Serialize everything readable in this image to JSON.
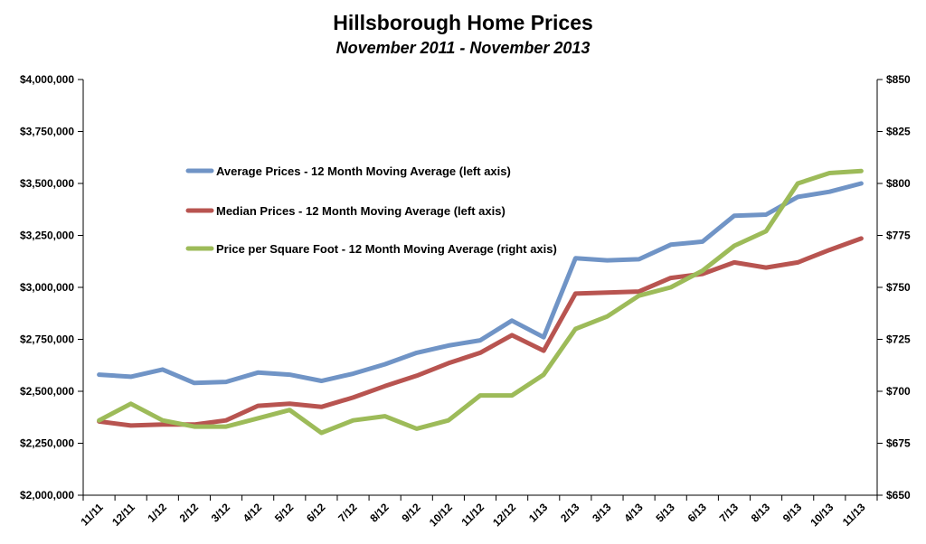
{
  "chart_data": {
    "type": "line",
    "title": "Hillsborough Home Prices",
    "subtitle": "November 2011 - November 2013",
    "categories": [
      "11/11",
      "12/11",
      "1/12",
      "2/12",
      "3/12",
      "4/12",
      "5/12",
      "6/12",
      "7/12",
      "8/12",
      "9/12",
      "10/12",
      "11/12",
      "12/12",
      "1/13",
      "2/13",
      "3/13",
      "4/13",
      "5/13",
      "6/13",
      "7/13",
      "8/13",
      "9/13",
      "10/13",
      "11/13"
    ],
    "left_axis": {
      "ylim": [
        2000000,
        4000000
      ],
      "ticks": [
        2000000,
        2250000,
        2500000,
        2750000,
        3000000,
        3250000,
        3500000,
        3750000,
        4000000
      ],
      "tick_labels": [
        "$2,000,000",
        "$2,250,000",
        "$2,500,000",
        "$2,750,000",
        "$3,000,000",
        "$3,250,000",
        "$3,500,000",
        "$3,750,000",
        "$4,000,000"
      ]
    },
    "right_axis": {
      "ylim": [
        650,
        850
      ],
      "ticks": [
        650,
        675,
        700,
        725,
        750,
        775,
        800,
        825,
        850
      ],
      "tick_labels": [
        "$650",
        "$675",
        "$700",
        "$725",
        "$750",
        "$775",
        "$800",
        "$825",
        "$850"
      ]
    },
    "series": [
      {
        "name": "Average Prices - 12 Month Moving Average (left axis)",
        "axis": "left",
        "color": "#7094c6",
        "values": [
          2580000,
          2570000,
          2605000,
          2540000,
          2545000,
          2590000,
          2580000,
          2550000,
          2585000,
          2630000,
          2685000,
          2720000,
          2745000,
          2840000,
          2760000,
          3140000,
          3130000,
          3135000,
          3205000,
          3220000,
          3345000,
          3350000,
          3435000,
          3460000,
          3500000
        ]
      },
      {
        "name": "Median Prices - 12 Month Moving Average (left axis)",
        "axis": "left",
        "color": "#b85450",
        "values": [
          2355000,
          2335000,
          2340000,
          2340000,
          2360000,
          2430000,
          2440000,
          2425000,
          2470000,
          2525000,
          2575000,
          2635000,
          2685000,
          2770000,
          2695000,
          2970000,
          2975000,
          2980000,
          3045000,
          3065000,
          3120000,
          3095000,
          3120000,
          3180000,
          3235000
        ]
      },
      {
        "name": "Price per Square Foot - 12 Month Moving Average (right axis)",
        "axis": "right",
        "color": "#9dbb59",
        "values": [
          686,
          694,
          686,
          683,
          683,
          687,
          691,
          680,
          686,
          688,
          682,
          686,
          698,
          698,
          708,
          730,
          736,
          746,
          750,
          758,
          770,
          777,
          800,
          805,
          806
        ]
      }
    ],
    "legend_position": "upper-left-inside",
    "grid": false
  }
}
